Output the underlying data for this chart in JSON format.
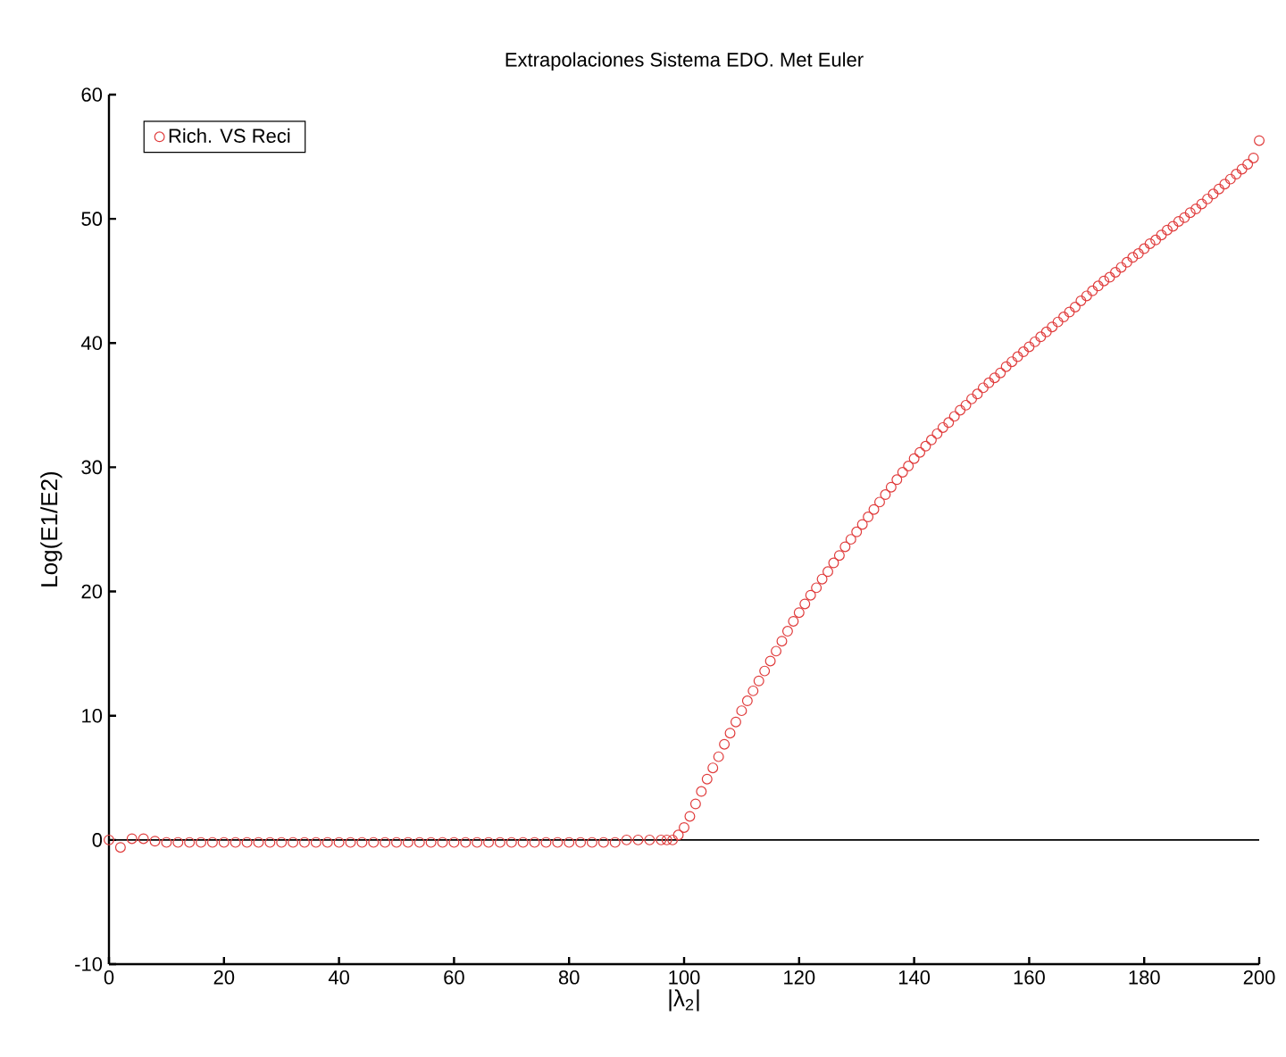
{
  "chart_data": {
    "type": "scatter",
    "title": "Extrapolaciones Sistema EDO. Met Euler",
    "xlabel": "|λ$_{2}$|",
    "ylabel": "Log(E1/E2)",
    "xlim": [
      0,
      200
    ],
    "ylim": [
      -10,
      60
    ],
    "xticks": [
      0,
      20,
      40,
      60,
      80,
      100,
      120,
      140,
      160,
      180,
      200
    ],
    "yticks": [
      -10,
      0,
      10,
      20,
      30,
      40,
      50,
      60
    ],
    "grid": false,
    "legend": "top left",
    "marker": "circle",
    "ref_lines": [
      {
        "axis": "y",
        "value": 0,
        "color": "#000000"
      }
    ],
    "series": [
      {
        "name": "Rich. VS Reci",
        "color": "#e03c3c",
        "x": [
          0,
          2,
          4,
          6,
          8,
          10,
          12,
          14,
          16,
          18,
          20,
          22,
          24,
          26,
          28,
          30,
          32,
          34,
          36,
          38,
          40,
          42,
          44,
          46,
          48,
          50,
          52,
          54,
          56,
          58,
          60,
          62,
          64,
          66,
          68,
          70,
          72,
          74,
          76,
          78,
          80,
          82,
          84,
          86,
          88,
          90,
          92,
          94,
          96,
          97,
          98,
          99,
          100,
          101,
          102,
          103,
          104,
          105,
          106,
          107,
          108,
          109,
          110,
          111,
          112,
          113,
          114,
          115,
          116,
          117,
          118,
          119,
          120,
          121,
          122,
          123,
          124,
          125,
          126,
          127,
          128,
          129,
          130,
          131,
          132,
          133,
          134,
          135,
          136,
          137,
          138,
          139,
          140,
          141,
          142,
          143,
          144,
          145,
          146,
          147,
          148,
          149,
          150,
          151,
          152,
          153,
          154,
          155,
          156,
          157,
          158,
          159,
          160,
          161,
          162,
          163,
          164,
          165,
          166,
          167,
          168,
          169,
          170,
          171,
          172,
          173,
          174,
          175,
          176,
          177,
          178,
          179,
          180,
          181,
          182,
          183,
          184,
          185,
          186,
          187,
          188,
          189,
          190,
          191,
          192,
          193,
          194,
          195,
          196,
          197,
          198,
          199,
          200
        ],
        "values": [
          0,
          -0.6,
          0.1,
          0.1,
          -0.1,
          -0.2,
          -0.2,
          -0.2,
          -0.2,
          -0.2,
          -0.2,
          -0.2,
          -0.2,
          -0.2,
          -0.2,
          -0.2,
          -0.2,
          -0.2,
          -0.2,
          -0.2,
          -0.2,
          -0.2,
          -0.2,
          -0.2,
          -0.2,
          -0.2,
          -0.2,
          -0.2,
          -0.2,
          -0.2,
          -0.2,
          -0.2,
          -0.2,
          -0.2,
          -0.2,
          -0.2,
          -0.2,
          -0.2,
          -0.2,
          -0.2,
          -0.2,
          -0.2,
          -0.2,
          -0.2,
          -0.2,
          0,
          0,
          0,
          0,
          0,
          0,
          0.4,
          1.0,
          1.9,
          2.9,
          3.9,
          4.9,
          5.8,
          6.7,
          7.7,
          8.6,
          9.5,
          10.4,
          11.2,
          12.0,
          12.8,
          13.6,
          14.4,
          15.2,
          16.0,
          16.8,
          17.6,
          18.3,
          19.0,
          19.7,
          20.3,
          21.0,
          21.6,
          22.3,
          22.9,
          23.6,
          24.2,
          24.8,
          25.4,
          26.0,
          26.6,
          27.2,
          27.8,
          28.4,
          29.0,
          29.6,
          30.1,
          30.7,
          31.2,
          31.7,
          32.2,
          32.7,
          33.2,
          33.6,
          34.1,
          34.6,
          35.0,
          35.5,
          35.9,
          36.4,
          36.8,
          37.2,
          37.6,
          38.1,
          38.5,
          38.9,
          39.3,
          39.7,
          40.1,
          40.5,
          40.9,
          41.3,
          41.7,
          42.1,
          42.5,
          42.9,
          43.4,
          43.8,
          44.2,
          44.6,
          45.0,
          45.3,
          45.7,
          46.1,
          46.5,
          46.9,
          47.2,
          47.6,
          48.0,
          48.3,
          48.7,
          49.1,
          49.4,
          49.8,
          50.1,
          50.5,
          50.8,
          51.2,
          51.6,
          52.0,
          52.4,
          52.8,
          53.2,
          53.6,
          54.0,
          54.4,
          54.9,
          56.3
        ]
      }
    ]
  }
}
